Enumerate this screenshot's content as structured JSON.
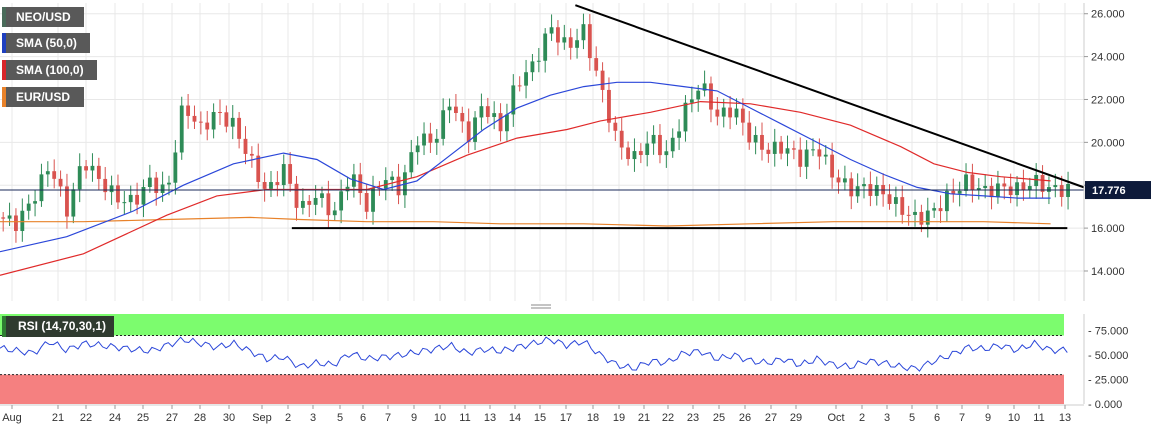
{
  "legend": [
    {
      "label": "NEO/USD",
      "color": "#4a6b5a"
    },
    {
      "label": "SMA (50,0)",
      "color": "#1f3fbf"
    },
    {
      "label": "SMA (100,0)",
      "color": "#d9262a"
    },
    {
      "label": "EUR/USD",
      "color": "#e8822a"
    }
  ],
  "rsi_label": "RSI (14,70,30,1)",
  "colors": {
    "up": "#2e8b57",
    "down": "#d9534f",
    "sma50": "#2b47d9",
    "sma100": "#e02a2a",
    "eurusd": "#e8822a",
    "trend": "#000000",
    "rsi": "#2b47d9",
    "overbought": "#7cfc6e",
    "oversold": "#f58080"
  },
  "chart_data": [
    {
      "type": "candlestick",
      "y_ticks": [
        "14.000",
        "16.000",
        "18.000",
        "20.000",
        "22.000",
        "24.000",
        "26.000"
      ],
      "ylim": [
        12.6,
        26.5
      ],
      "x_ticks": [
        "Aug",
        "21",
        "22",
        "24",
        "25",
        "27",
        "28",
        "30",
        "Sep",
        "2",
        "3",
        "5",
        "6",
        "7",
        "9",
        "10",
        "11",
        "13",
        "14",
        "15",
        "17",
        "18",
        "19",
        "21",
        "22",
        "23",
        "25",
        "26",
        "27",
        "29",
        "Oct",
        "2",
        "3",
        "5",
        "6",
        "7",
        "9",
        "10",
        "11",
        "13"
      ],
      "last_price": "17.776",
      "last_price_value": 17.776,
      "grid": true,
      "price_path": [
        [
          0,
          16.5
        ],
        [
          2,
          16.2
        ],
        [
          4,
          17.4
        ],
        [
          6,
          19.0
        ],
        [
          8,
          16.8
        ],
        [
          10,
          19.2
        ],
        [
          12,
          18.2
        ],
        [
          14,
          17.4
        ],
        [
          16,
          17.2
        ],
        [
          18,
          18.2
        ],
        [
          20,
          17.6
        ],
        [
          22,
          21.8
        ],
        [
          24,
          20.6
        ],
        [
          26,
          21.4
        ],
        [
          28,
          20.8
        ],
        [
          30,
          19.2
        ],
        [
          32,
          17.6
        ],
        [
          34,
          18.8
        ],
        [
          36,
          16.8
        ],
        [
          38,
          17.6
        ],
        [
          40,
          16.6
        ],
        [
          42,
          18.6
        ],
        [
          44,
          17.0
        ],
        [
          46,
          18.4
        ],
        [
          48,
          17.8
        ],
        [
          50,
          20.2
        ],
        [
          52,
          20.0
        ],
        [
          54,
          22.0
        ],
        [
          56,
          20.2
        ],
        [
          58,
          21.8
        ],
        [
          60,
          20.6
        ],
        [
          62,
          22.8
        ],
        [
          64,
          23.6
        ],
        [
          66,
          25.4
        ],
        [
          68,
          24.4
        ],
        [
          70,
          25.2
        ],
        [
          72,
          22.6
        ],
        [
          74,
          20.0
        ],
        [
          76,
          19.2
        ],
        [
          78,
          20.2
        ],
        [
          80,
          19.4
        ],
        [
          82,
          21.4
        ],
        [
          84,
          22.8
        ],
        [
          86,
          21.2
        ],
        [
          88,
          21.6
        ],
        [
          90,
          20.2
        ],
        [
          92,
          19.6
        ],
        [
          94,
          19.8
        ],
        [
          96,
          19.2
        ],
        [
          98,
          19.8
        ],
        [
          100,
          18.4
        ],
        [
          102,
          17.8
        ],
        [
          104,
          17.9
        ],
        [
          106,
          17.6
        ],
        [
          108,
          16.9
        ],
        [
          110,
          16.4
        ],
        [
          112,
          16.8
        ],
        [
          114,
          17.6
        ],
        [
          116,
          18.2
        ],
        [
          118,
          17.7
        ],
        [
          120,
          17.9
        ],
        [
          122,
          17.8
        ],
        [
          124,
          18.2
        ],
        [
          126,
          17.8
        ]
      ],
      "sma50": [
        [
          0,
          14.9
        ],
        [
          8,
          15.6
        ],
        [
          16,
          16.8
        ],
        [
          22,
          18.0
        ],
        [
          28,
          19.0
        ],
        [
          34,
          19.5
        ],
        [
          38,
          19.2
        ],
        [
          42,
          18.3
        ],
        [
          46,
          17.8
        ],
        [
          50,
          18.2
        ],
        [
          54,
          19.4
        ],
        [
          58,
          20.6
        ],
        [
          62,
          21.6
        ],
        [
          66,
          22.2
        ],
        [
          70,
          22.6
        ],
        [
          74,
          22.8
        ],
        [
          78,
          22.8
        ],
        [
          82,
          22.6
        ],
        [
          86,
          22.4
        ],
        [
          90,
          21.6
        ],
        [
          94,
          20.8
        ],
        [
          98,
          20.0
        ],
        [
          102,
          19.2
        ],
        [
          106,
          18.5
        ],
        [
          110,
          17.9
        ],
        [
          114,
          17.6
        ],
        [
          118,
          17.5
        ],
        [
          122,
          17.4
        ],
        [
          126,
          17.4
        ]
      ],
      "sma100": [
        [
          0,
          13.8
        ],
        [
          10,
          14.8
        ],
        [
          20,
          16.6
        ],
        [
          26,
          17.5
        ],
        [
          32,
          17.8
        ],
        [
          38,
          17.8
        ],
        [
          44,
          17.8
        ],
        [
          50,
          18.4
        ],
        [
          56,
          19.4
        ],
        [
          62,
          20.2
        ],
        [
          68,
          20.6
        ],
        [
          72,
          21.0
        ],
        [
          78,
          21.4
        ],
        [
          84,
          21.9
        ],
        [
          90,
          21.8
        ],
        [
          96,
          21.4
        ],
        [
          102,
          20.8
        ],
        [
          108,
          19.8
        ],
        [
          112,
          19.0
        ],
        [
          116,
          18.6
        ],
        [
          120,
          18.4
        ],
        [
          126,
          18.2
        ]
      ],
      "eurusd": [
        [
          0,
          16.3
        ],
        [
          10,
          16.3
        ],
        [
          20,
          16.4
        ],
        [
          30,
          16.5
        ],
        [
          36,
          16.4
        ],
        [
          44,
          16.3
        ],
        [
          52,
          16.3
        ],
        [
          60,
          16.2
        ],
        [
          70,
          16.2
        ],
        [
          80,
          16.1
        ],
        [
          90,
          16.2
        ],
        [
          100,
          16.3
        ],
        [
          110,
          16.3
        ],
        [
          118,
          16.3
        ],
        [
          126,
          16.2
        ]
      ],
      "trend_lines": [
        [
          [
            69,
            26.4
          ],
          [
            130,
            17.9
          ]
        ],
        [
          [
            35,
            16.0
          ],
          [
            128,
            16.0
          ]
        ]
      ],
      "x_extent": [
        0,
        130
      ]
    },
    {
      "type": "line",
      "name": "RSI",
      "y_ticks": [
        "0.000",
        "25.000",
        "50.000",
        "75.000"
      ],
      "ylim": [
        0,
        92
      ],
      "overbought": 70,
      "oversold": 30,
      "rsi": [
        [
          0,
          57
        ],
        [
          4,
          52
        ],
        [
          6,
          64
        ],
        [
          8,
          55
        ],
        [
          10,
          62
        ],
        [
          14,
          58
        ],
        [
          18,
          54
        ],
        [
          22,
          66
        ],
        [
          26,
          58
        ],
        [
          28,
          62
        ],
        [
          30,
          54
        ],
        [
          32,
          46
        ],
        [
          34,
          48
        ],
        [
          36,
          38
        ],
        [
          38,
          42
        ],
        [
          40,
          40
        ],
        [
          42,
          52
        ],
        [
          44,
          46
        ],
        [
          48,
          50
        ],
        [
          52,
          56
        ],
        [
          54,
          60
        ],
        [
          56,
          52
        ],
        [
          58,
          56
        ],
        [
          60,
          54
        ],
        [
          62,
          58
        ],
        [
          64,
          62
        ],
        [
          66,
          66
        ],
        [
          68,
          60
        ],
        [
          70,
          64
        ],
        [
          72,
          50
        ],
        [
          74,
          40
        ],
        [
          76,
          36
        ],
        [
          78,
          44
        ],
        [
          80,
          42
        ],
        [
          82,
          52
        ],
        [
          84,
          54
        ],
        [
          86,
          46
        ],
        [
          88,
          50
        ],
        [
          90,
          44
        ],
        [
          92,
          42
        ],
        [
          94,
          46
        ],
        [
          96,
          40
        ],
        [
          98,
          46
        ],
        [
          100,
          40
        ],
        [
          102,
          38
        ],
        [
          104,
          44
        ],
        [
          106,
          42
        ],
        [
          108,
          38
        ],
        [
          110,
          36
        ],
        [
          112,
          44
        ],
        [
          114,
          50
        ],
        [
          116,
          58
        ],
        [
          118,
          56
        ],
        [
          120,
          60
        ],
        [
          122,
          55
        ],
        [
          124,
          62
        ],
        [
          126,
          55
        ]
      ]
    }
  ]
}
